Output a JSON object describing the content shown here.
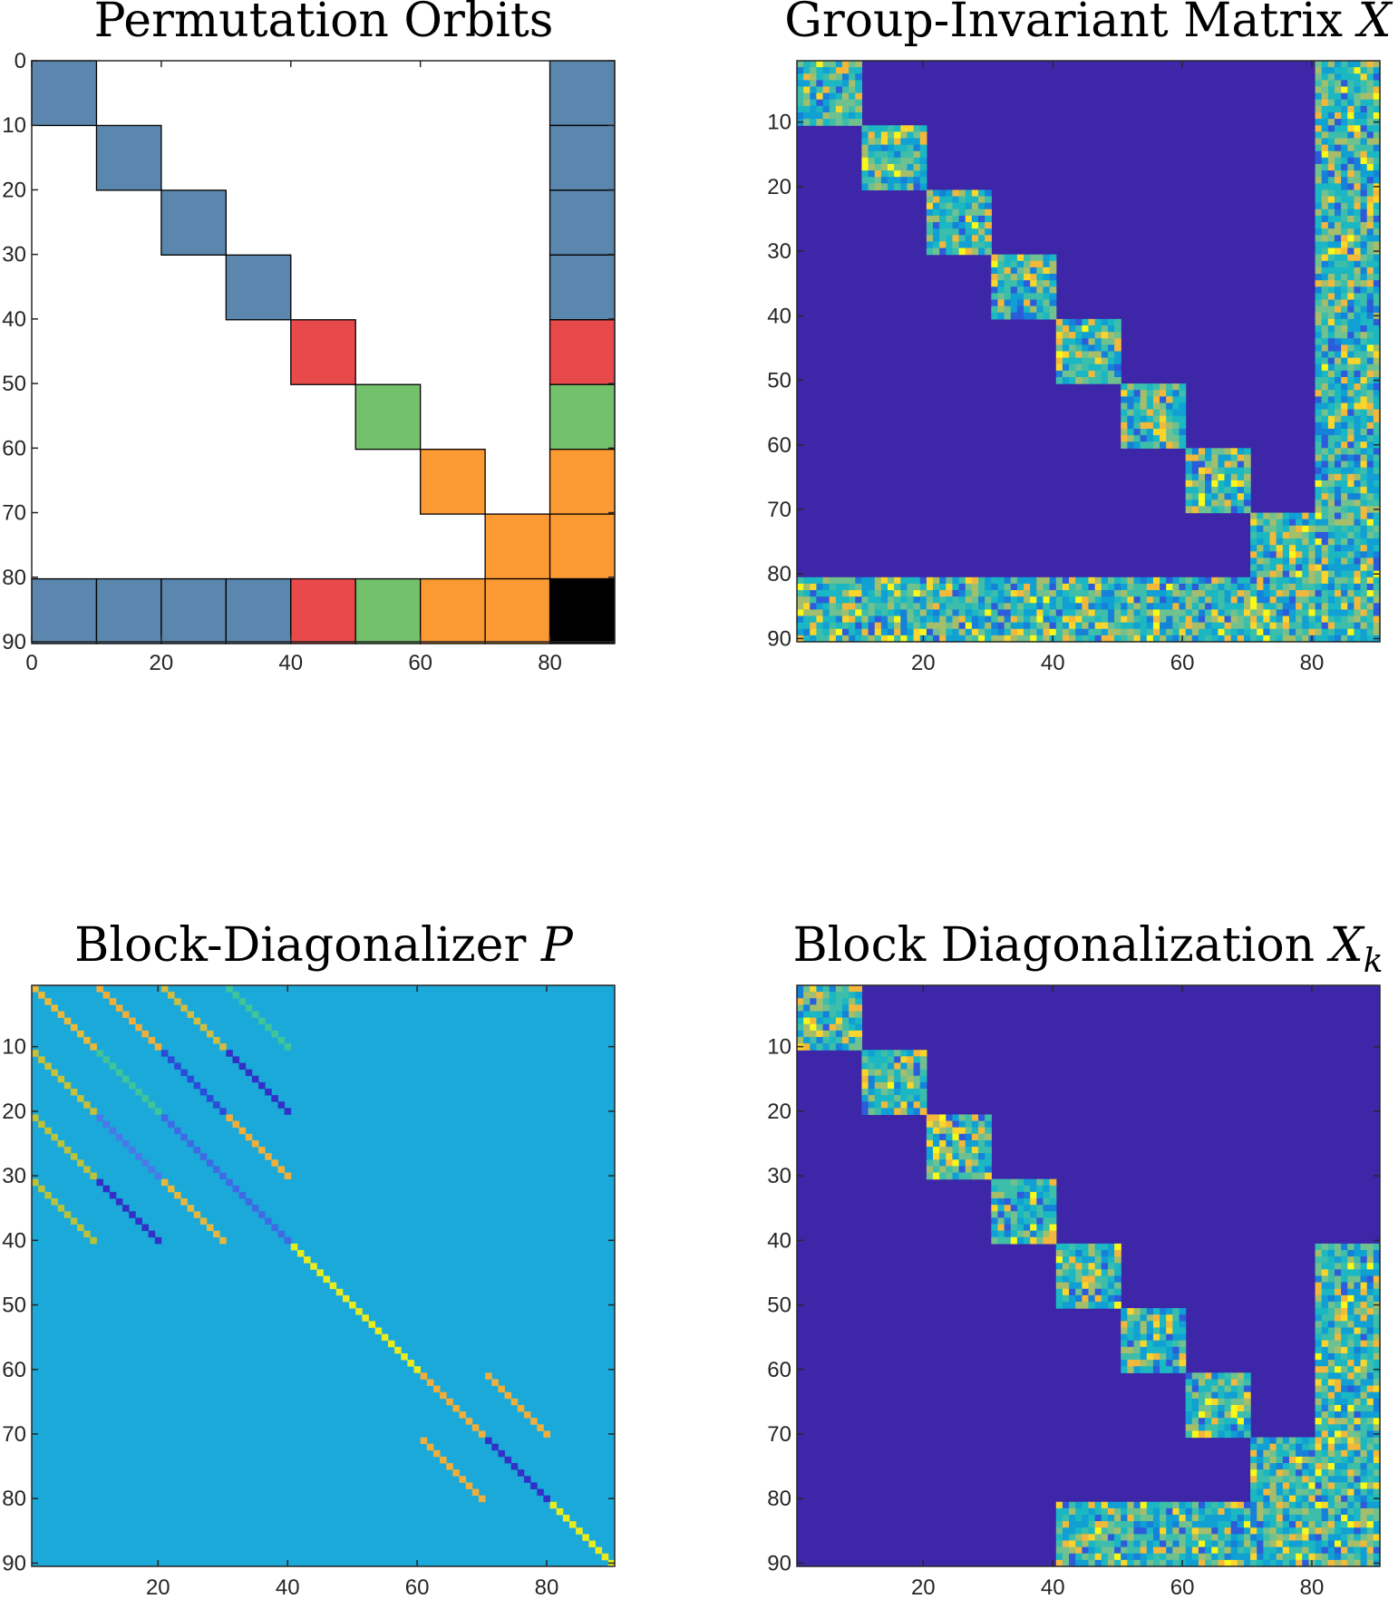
{
  "chart_data": [
    {
      "type": "heatmap",
      "panel": "orbits",
      "title": "Permutation Orbits",
      "title_var": "",
      "matrix_size": 90,
      "xticks": [
        0,
        20,
        40,
        60,
        80
      ],
      "yticks": [
        0,
        10,
        20,
        30,
        40,
        50,
        60,
        70,
        80,
        90
      ],
      "xlim": [
        0,
        90
      ],
      "ylim": [
        0,
        90
      ],
      "orbit_colors": {
        "blue": "#5b86ad",
        "red": "#e8494b",
        "green": "#74c16b",
        "orange": "#fb9a33",
        "black": "#000000"
      },
      "blocks": [
        {
          "row": 0,
          "col": 0,
          "color": "blue"
        },
        {
          "row": 10,
          "col": 10,
          "color": "blue"
        },
        {
          "row": 20,
          "col": 20,
          "color": "blue"
        },
        {
          "row": 30,
          "col": 30,
          "color": "blue"
        },
        {
          "row": 40,
          "col": 40,
          "color": "red"
        },
        {
          "row": 50,
          "col": 50,
          "color": "green"
        },
        {
          "row": 60,
          "col": 60,
          "color": "orange"
        },
        {
          "row": 70,
          "col": 70,
          "color": "orange"
        },
        {
          "row": 0,
          "col": 80,
          "color": "blue"
        },
        {
          "row": 10,
          "col": 80,
          "color": "blue"
        },
        {
          "row": 20,
          "col": 80,
          "color": "blue"
        },
        {
          "row": 30,
          "col": 80,
          "color": "blue"
        },
        {
          "row": 40,
          "col": 80,
          "color": "red"
        },
        {
          "row": 50,
          "col": 80,
          "color": "green"
        },
        {
          "row": 60,
          "col": 80,
          "color": "orange"
        },
        {
          "row": 70,
          "col": 80,
          "color": "orange"
        },
        {
          "row": 80,
          "col": 0,
          "color": "blue"
        },
        {
          "row": 80,
          "col": 10,
          "color": "blue"
        },
        {
          "row": 80,
          "col": 20,
          "color": "blue"
        },
        {
          "row": 80,
          "col": 30,
          "color": "blue"
        },
        {
          "row": 80,
          "col": 40,
          "color": "red"
        },
        {
          "row": 80,
          "col": 50,
          "color": "green"
        },
        {
          "row": 80,
          "col": 60,
          "color": "orange"
        },
        {
          "row": 80,
          "col": 70,
          "color": "orange"
        },
        {
          "row": 80,
          "col": 80,
          "color": "black"
        }
      ],
      "block_size": 10
    },
    {
      "type": "heatmap",
      "panel": "invariant",
      "title": "Group-Invariant Matrix ",
      "title_var": "X",
      "matrix_size": 90,
      "xticks": [
        20,
        40,
        60,
        80
      ],
      "yticks": [
        10,
        20,
        30,
        40,
        50,
        60,
        70,
        80,
        90
      ],
      "background_color": "#3e26a8",
      "nonzero_structure": "8 diagonal 10x10 blocks plus dense last 10 rows and last 10 columns",
      "diagonal_blocks": [
        [
          0,
          0
        ],
        [
          10,
          10
        ],
        [
          20,
          20
        ],
        [
          30,
          30
        ],
        [
          40,
          40
        ],
        [
          50,
          50
        ],
        [
          60,
          60
        ],
        [
          70,
          70
        ]
      ],
      "dense_border": {
        "rows": [
          80,
          90
        ],
        "cols": [
          80,
          90
        ]
      },
      "block_size": 10
    },
    {
      "type": "heatmap",
      "panel": "diagonalizer",
      "title": "Block-Diagonalizer ",
      "title_var": "P",
      "matrix_size": 90,
      "xticks": [
        20,
        40,
        60,
        80
      ],
      "yticks": [
        10,
        20,
        30,
        40,
        50,
        60,
        70,
        80,
        90
      ],
      "background_color": "#1aa9d9",
      "diagonal_bands": [
        {
          "row": 0,
          "col": 0,
          "len": 10,
          "color": "#e9b93a"
        },
        {
          "row": 0,
          "col": 10,
          "len": 10,
          "color": "#f1ae3b"
        },
        {
          "row": 0,
          "col": 20,
          "len": 10,
          "color": "#cfbd43"
        },
        {
          "row": 0,
          "col": 30,
          "len": 10,
          "color": "#3fc598"
        },
        {
          "row": 10,
          "col": 0,
          "len": 10,
          "color": "#c7c039"
        },
        {
          "row": 10,
          "col": 10,
          "len": 10,
          "color": "#3fc598"
        },
        {
          "row": 10,
          "col": 20,
          "len": 10,
          "color": "#2c4bd8"
        },
        {
          "row": 10,
          "col": 30,
          "len": 10,
          "color": "#3230c6"
        },
        {
          "row": 20,
          "col": 0,
          "len": 10,
          "color": "#bcc23a"
        },
        {
          "row": 20,
          "col": 10,
          "len": 10,
          "color": "#4a78e8"
        },
        {
          "row": 20,
          "col": 20,
          "len": 10,
          "color": "#3f6ae6"
        },
        {
          "row": 20,
          "col": 30,
          "len": 10,
          "color": "#f1ae3b"
        },
        {
          "row": 30,
          "col": 0,
          "len": 10,
          "color": "#b9c23a"
        },
        {
          "row": 30,
          "col": 10,
          "len": 10,
          "color": "#3230c6"
        },
        {
          "row": 30,
          "col": 20,
          "len": 10,
          "color": "#e5b73e"
        },
        {
          "row": 30,
          "col": 30,
          "len": 10,
          "color": "#3f6ae6"
        },
        {
          "row": 40,
          "col": 40,
          "len": 20,
          "color": "#e8ec1f"
        },
        {
          "row": 60,
          "col": 60,
          "len": 10,
          "color": "#f1ae3b"
        },
        {
          "row": 60,
          "col": 70,
          "len": 10,
          "color": "#f1ae3b"
        },
        {
          "row": 70,
          "col": 60,
          "len": 10,
          "color": "#f1ae3b"
        },
        {
          "row": 70,
          "col": 70,
          "len": 10,
          "color": "#3230c6"
        },
        {
          "row": 80,
          "col": 80,
          "len": 10,
          "color": "#e8ec1f"
        }
      ]
    },
    {
      "type": "heatmap",
      "panel": "blockdiag",
      "title": "Block Diagonalization ",
      "title_var": "X",
      "title_sub": "k",
      "matrix_size": 90,
      "xticks": [
        20,
        40,
        60,
        80
      ],
      "yticks": [
        10,
        20,
        30,
        40,
        50,
        60,
        70,
        80,
        90
      ],
      "background_color": "#3e26a8",
      "diagonal_blocks": [
        [
          0,
          0
        ],
        [
          10,
          10
        ],
        [
          20,
          20
        ],
        [
          30,
          30
        ],
        [
          40,
          40
        ],
        [
          50,
          50
        ],
        [
          60,
          60
        ],
        [
          70,
          70
        ]
      ],
      "dense_regions": [
        {
          "rows": [
            40,
            90
          ],
          "cols": [
            80,
            90
          ]
        },
        {
          "rows": [
            80,
            90
          ],
          "cols": [
            40,
            90
          ]
        },
        {
          "rows": [
            70,
            90
          ],
          "cols": [
            70,
            90
          ]
        }
      ],
      "block_size": 10
    }
  ]
}
